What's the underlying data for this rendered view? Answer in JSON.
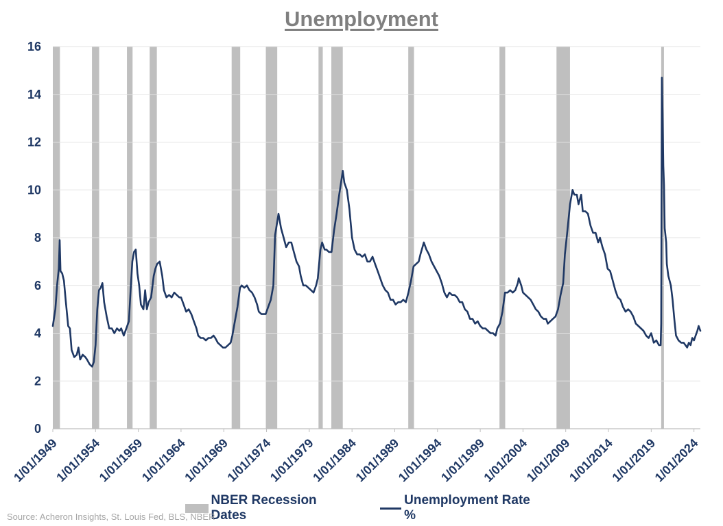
{
  "chart_data": {
    "type": "line",
    "title": "Unemployment",
    "source": "Source: Acheron Insights, St. Louis Fed, BLS, NBER",
    "ylim": [
      0,
      16
    ],
    "yticks": [
      0,
      2,
      4,
      6,
      8,
      10,
      12,
      14,
      16
    ],
    "xlim": [
      1949.0,
      2024.75
    ],
    "xtick_labels": [
      "1/01/1949",
      "1/01/1954",
      "1/01/1959",
      "1/01/1964",
      "1/01/1969",
      "1/01/1974",
      "1/01/1979",
      "1/01/1984",
      "1/01/1989",
      "1/01/1994",
      "1/01/1999",
      "1/01/2004",
      "1/01/2009",
      "1/01/2014",
      "1/01/2019",
      "1/01/2024"
    ],
    "grid": "horizontal",
    "legend_position": "bottom",
    "series": [
      {
        "name": "NBER Recession Dates",
        "kind": "shaded-periods",
        "color": "#bfbfbf",
        "periods": [
          [
            1949.0,
            1949.83
          ],
          [
            1953.58,
            1954.42
          ],
          [
            1957.67,
            1958.33
          ],
          [
            1960.33,
            1961.17
          ],
          [
            1969.92,
            1970.92
          ],
          [
            1973.92,
            1975.25
          ],
          [
            1980.08,
            1980.58
          ],
          [
            1981.58,
            1982.92
          ],
          [
            1990.58,
            1991.25
          ],
          [
            2001.25,
            2001.92
          ],
          [
            2007.92,
            2009.5
          ],
          [
            2020.17,
            2020.33
          ]
        ]
      },
      {
        "name": "Unemployment Rate %",
        "kind": "line",
        "color": "#1f3864",
        "points": [
          [
            1949.0,
            4.3
          ],
          [
            1949.3,
            5.0
          ],
          [
            1949.5,
            6.0
          ],
          [
            1949.7,
            6.7
          ],
          [
            1949.8,
            7.9
          ],
          [
            1949.9,
            6.6
          ],
          [
            1950.1,
            6.5
          ],
          [
            1950.3,
            6.2
          ],
          [
            1950.5,
            5.4
          ],
          [
            1950.8,
            4.3
          ],
          [
            1951.0,
            4.2
          ],
          [
            1951.2,
            3.3
          ],
          [
            1951.5,
            3.0
          ],
          [
            1951.8,
            3.1
          ],
          [
            1952.0,
            3.4
          ],
          [
            1952.2,
            2.9
          ],
          [
            1952.5,
            3.1
          ],
          [
            1952.8,
            3.0
          ],
          [
            1953.0,
            2.9
          ],
          [
            1953.3,
            2.7
          ],
          [
            1953.6,
            2.6
          ],
          [
            1953.8,
            2.8
          ],
          [
            1954.0,
            3.5
          ],
          [
            1954.2,
            5.0
          ],
          [
            1954.4,
            5.8
          ],
          [
            1954.6,
            5.9
          ],
          [
            1954.8,
            6.1
          ],
          [
            1955.0,
            5.3
          ],
          [
            1955.3,
            4.7
          ],
          [
            1955.6,
            4.2
          ],
          [
            1955.9,
            4.2
          ],
          [
            1956.2,
            4.0
          ],
          [
            1956.5,
            4.2
          ],
          [
            1956.8,
            4.1
          ],
          [
            1957.0,
            4.2
          ],
          [
            1957.3,
            3.9
          ],
          [
            1957.6,
            4.2
          ],
          [
            1957.9,
            4.5
          ],
          [
            1958.1,
            5.8
          ],
          [
            1958.3,
            7.0
          ],
          [
            1958.5,
            7.4
          ],
          [
            1958.7,
            7.5
          ],
          [
            1958.9,
            6.5
          ],
          [
            1959.1,
            6.0
          ],
          [
            1959.3,
            5.2
          ],
          [
            1959.6,
            5.0
          ],
          [
            1959.8,
            5.8
          ],
          [
            1960.0,
            5.0
          ],
          [
            1960.2,
            5.3
          ],
          [
            1960.5,
            5.5
          ],
          [
            1960.8,
            6.4
          ],
          [
            1961.0,
            6.7
          ],
          [
            1961.2,
            6.9
          ],
          [
            1961.5,
            7.0
          ],
          [
            1961.8,
            6.4
          ],
          [
            1962.0,
            5.8
          ],
          [
            1962.3,
            5.5
          ],
          [
            1962.6,
            5.6
          ],
          [
            1962.9,
            5.5
          ],
          [
            1963.2,
            5.7
          ],
          [
            1963.5,
            5.6
          ],
          [
            1963.8,
            5.5
          ],
          [
            1964.0,
            5.5
          ],
          [
            1964.3,
            5.2
          ],
          [
            1964.6,
            4.9
          ],
          [
            1964.9,
            5.0
          ],
          [
            1965.2,
            4.8
          ],
          [
            1965.5,
            4.5
          ],
          [
            1965.8,
            4.2
          ],
          [
            1966.0,
            3.9
          ],
          [
            1966.3,
            3.8
          ],
          [
            1966.6,
            3.8
          ],
          [
            1966.9,
            3.7
          ],
          [
            1967.2,
            3.8
          ],
          [
            1967.5,
            3.8
          ],
          [
            1967.8,
            3.9
          ],
          [
            1968.0,
            3.8
          ],
          [
            1968.3,
            3.6
          ],
          [
            1968.6,
            3.5
          ],
          [
            1968.9,
            3.4
          ],
          [
            1969.2,
            3.4
          ],
          [
            1969.5,
            3.5
          ],
          [
            1969.8,
            3.6
          ],
          [
            1970.0,
            3.9
          ],
          [
            1970.3,
            4.5
          ],
          [
            1970.6,
            5.1
          ],
          [
            1970.9,
            5.9
          ],
          [
            1971.1,
            6.0
          ],
          [
            1971.4,
            5.9
          ],
          [
            1971.7,
            6.0
          ],
          [
            1972.0,
            5.8
          ],
          [
            1972.3,
            5.7
          ],
          [
            1972.6,
            5.5
          ],
          [
            1972.9,
            5.2
          ],
          [
            1973.1,
            4.9
          ],
          [
            1973.4,
            4.8
          ],
          [
            1973.7,
            4.8
          ],
          [
            1973.9,
            4.8
          ],
          [
            1974.2,
            5.1
          ],
          [
            1974.5,
            5.4
          ],
          [
            1974.8,
            6.0
          ],
          [
            1975.0,
            8.1
          ],
          [
            1975.4,
            9.0
          ],
          [
            1975.7,
            8.4
          ],
          [
            1976.0,
            8.0
          ],
          [
            1976.3,
            7.6
          ],
          [
            1976.6,
            7.8
          ],
          [
            1976.9,
            7.8
          ],
          [
            1977.2,
            7.4
          ],
          [
            1977.5,
            7.0
          ],
          [
            1977.8,
            6.8
          ],
          [
            1978.0,
            6.4
          ],
          [
            1978.3,
            6.0
          ],
          [
            1978.6,
            6.0
          ],
          [
            1978.9,
            5.9
          ],
          [
            1979.2,
            5.8
          ],
          [
            1979.5,
            5.7
          ],
          [
            1979.8,
            6.0
          ],
          [
            1980.0,
            6.3
          ],
          [
            1980.3,
            7.5
          ],
          [
            1980.5,
            7.8
          ],
          [
            1980.8,
            7.5
          ],
          [
            1981.0,
            7.5
          ],
          [
            1981.3,
            7.4
          ],
          [
            1981.6,
            7.4
          ],
          [
            1981.9,
            8.3
          ],
          [
            1982.2,
            9.0
          ],
          [
            1982.5,
            9.8
          ],
          [
            1982.8,
            10.5
          ],
          [
            1982.92,
            10.8
          ],
          [
            1983.1,
            10.3
          ],
          [
            1983.4,
            10.0
          ],
          [
            1983.7,
            9.2
          ],
          [
            1984.0,
            8.0
          ],
          [
            1984.3,
            7.5
          ],
          [
            1984.6,
            7.3
          ],
          [
            1984.9,
            7.3
          ],
          [
            1985.2,
            7.2
          ],
          [
            1985.5,
            7.3
          ],
          [
            1985.8,
            7.0
          ],
          [
            1986.1,
            7.0
          ],
          [
            1986.4,
            7.2
          ],
          [
            1986.7,
            6.9
          ],
          [
            1987.0,
            6.6
          ],
          [
            1987.3,
            6.3
          ],
          [
            1987.6,
            6.0
          ],
          [
            1987.9,
            5.8
          ],
          [
            1988.2,
            5.7
          ],
          [
            1988.5,
            5.4
          ],
          [
            1988.8,
            5.4
          ],
          [
            1989.1,
            5.2
          ],
          [
            1989.4,
            5.3
          ],
          [
            1989.7,
            5.3
          ],
          [
            1990.0,
            5.4
          ],
          [
            1990.3,
            5.3
          ],
          [
            1990.6,
            5.7
          ],
          [
            1990.9,
            6.2
          ],
          [
            1991.2,
            6.8
          ],
          [
            1991.5,
            6.9
          ],
          [
            1991.8,
            7.0
          ],
          [
            1992.0,
            7.3
          ],
          [
            1992.4,
            7.8
          ],
          [
            1992.7,
            7.5
          ],
          [
            1993.0,
            7.3
          ],
          [
            1993.3,
            7.0
          ],
          [
            1993.6,
            6.8
          ],
          [
            1993.9,
            6.6
          ],
          [
            1994.2,
            6.4
          ],
          [
            1994.5,
            6.1
          ],
          [
            1994.8,
            5.7
          ],
          [
            1995.1,
            5.5
          ],
          [
            1995.4,
            5.7
          ],
          [
            1995.7,
            5.6
          ],
          [
            1996.0,
            5.6
          ],
          [
            1996.3,
            5.5
          ],
          [
            1996.6,
            5.3
          ],
          [
            1996.9,
            5.3
          ],
          [
            1997.2,
            5.0
          ],
          [
            1997.5,
            4.9
          ],
          [
            1997.8,
            4.6
          ],
          [
            1998.1,
            4.6
          ],
          [
            1998.4,
            4.4
          ],
          [
            1998.7,
            4.5
          ],
          [
            1999.0,
            4.3
          ],
          [
            1999.3,
            4.2
          ],
          [
            1999.6,
            4.2
          ],
          [
            1999.9,
            4.1
          ],
          [
            2000.2,
            4.0
          ],
          [
            2000.5,
            4.0
          ],
          [
            2000.8,
            3.9
          ],
          [
            2001.0,
            4.2
          ],
          [
            2001.3,
            4.4
          ],
          [
            2001.6,
            4.9
          ],
          [
            2001.9,
            5.7
          ],
          [
            2002.2,
            5.7
          ],
          [
            2002.5,
            5.8
          ],
          [
            2002.8,
            5.7
          ],
          [
            2003.1,
            5.8
          ],
          [
            2003.4,
            6.1
          ],
          [
            2003.5,
            6.3
          ],
          [
            2003.8,
            6.0
          ],
          [
            2004.0,
            5.7
          ],
          [
            2004.3,
            5.6
          ],
          [
            2004.6,
            5.5
          ],
          [
            2004.9,
            5.4
          ],
          [
            2005.2,
            5.2
          ],
          [
            2005.5,
            5.0
          ],
          [
            2005.8,
            4.9
          ],
          [
            2006.1,
            4.7
          ],
          [
            2006.4,
            4.6
          ],
          [
            2006.7,
            4.6
          ],
          [
            2006.9,
            4.4
          ],
          [
            2007.2,
            4.5
          ],
          [
            2007.5,
            4.6
          ],
          [
            2007.8,
            4.7
          ],
          [
            2008.1,
            5.0
          ],
          [
            2008.4,
            5.6
          ],
          [
            2008.7,
            6.1
          ],
          [
            2008.9,
            7.3
          ],
          [
            2009.2,
            8.3
          ],
          [
            2009.5,
            9.4
          ],
          [
            2009.8,
            10.0
          ],
          [
            2010.0,
            9.8
          ],
          [
            2010.3,
            9.8
          ],
          [
            2010.5,
            9.4
          ],
          [
            2010.8,
            9.8
          ],
          [
            2011.0,
            9.1
          ],
          [
            2011.3,
            9.1
          ],
          [
            2011.6,
            9.0
          ],
          [
            2011.9,
            8.5
          ],
          [
            2012.2,
            8.2
          ],
          [
            2012.5,
            8.2
          ],
          [
            2012.8,
            7.8
          ],
          [
            2013.0,
            8.0
          ],
          [
            2013.3,
            7.6
          ],
          [
            2013.6,
            7.3
          ],
          [
            2013.9,
            6.7
          ],
          [
            2014.2,
            6.6
          ],
          [
            2014.5,
            6.2
          ],
          [
            2014.8,
            5.8
          ],
          [
            2015.1,
            5.5
          ],
          [
            2015.4,
            5.4
          ],
          [
            2015.7,
            5.1
          ],
          [
            2016.0,
            4.9
          ],
          [
            2016.3,
            5.0
          ],
          [
            2016.6,
            4.9
          ],
          [
            2016.9,
            4.7
          ],
          [
            2017.2,
            4.4
          ],
          [
            2017.5,
            4.3
          ],
          [
            2017.8,
            4.2
          ],
          [
            2018.1,
            4.1
          ],
          [
            2018.4,
            3.9
          ],
          [
            2018.7,
            3.8
          ],
          [
            2019.0,
            4.0
          ],
          [
            2019.3,
            3.6
          ],
          [
            2019.6,
            3.7
          ],
          [
            2019.9,
            3.5
          ],
          [
            2020.1,
            3.5
          ],
          [
            2020.17,
            4.4
          ],
          [
            2020.25,
            14.7
          ],
          [
            2020.33,
            13.2
          ],
          [
            2020.42,
            11.0
          ],
          [
            2020.5,
            10.2
          ],
          [
            2020.58,
            8.4
          ],
          [
            2020.75,
            7.8
          ],
          [
            2020.83,
            6.9
          ],
          [
            2021.0,
            6.4
          ],
          [
            2021.3,
            6.0
          ],
          [
            2021.5,
            5.4
          ],
          [
            2021.7,
            4.6
          ],
          [
            2021.9,
            3.9
          ],
          [
            2022.2,
            3.7
          ],
          [
            2022.5,
            3.6
          ],
          [
            2022.8,
            3.6
          ],
          [
            2023.0,
            3.5
          ],
          [
            2023.2,
            3.4
          ],
          [
            2023.4,
            3.6
          ],
          [
            2023.6,
            3.5
          ],
          [
            2023.8,
            3.8
          ],
          [
            2024.0,
            3.7
          ],
          [
            2024.2,
            3.9
          ],
          [
            2024.4,
            4.1
          ],
          [
            2024.55,
            4.3
          ],
          [
            2024.75,
            4.1
          ]
        ]
      }
    ]
  }
}
